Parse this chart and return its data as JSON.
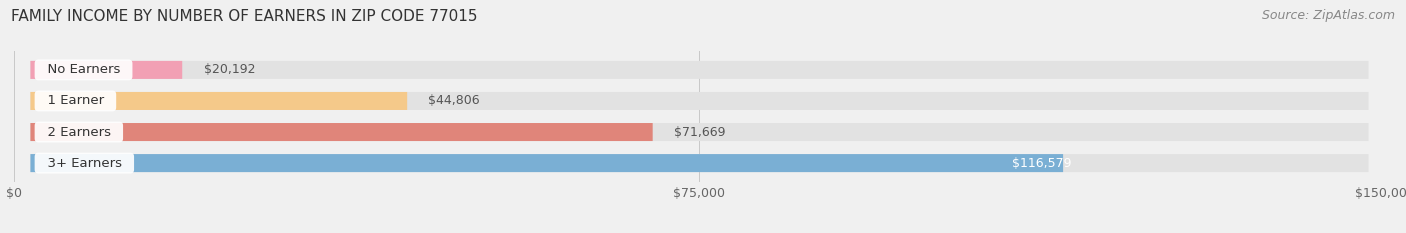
{
  "title": "FAMILY INCOME BY NUMBER OF EARNERS IN ZIP CODE 77015",
  "source": "Source: ZipAtlas.com",
  "categories": [
    "No Earners",
    "1 Earner",
    "2 Earners",
    "3+ Earners"
  ],
  "values": [
    20192,
    44806,
    71669,
    116579
  ],
  "bar_colors": [
    "#f2a0b4",
    "#f5c98a",
    "#e0857a",
    "#7aafd4"
  ],
  "label_colors": [
    "#555555",
    "#555555",
    "#555555",
    "#ffffff"
  ],
  "value_labels": [
    "$20,192",
    "$44,806",
    "$71,669",
    "$116,579"
  ],
  "xlim": [
    0,
    150000
  ],
  "xticks": [
    0,
    75000,
    150000
  ],
  "xtick_labels": [
    "$0",
    "$75,000",
    "$150,000"
  ],
  "background_color": "#f0f0f0",
  "bar_background_color": "#e2e2e2",
  "title_fontsize": 11,
  "source_fontsize": 9,
  "bar_label_fontsize": 9.5,
  "value_label_fontsize": 9,
  "tick_fontsize": 9,
  "bar_height": 0.58
}
